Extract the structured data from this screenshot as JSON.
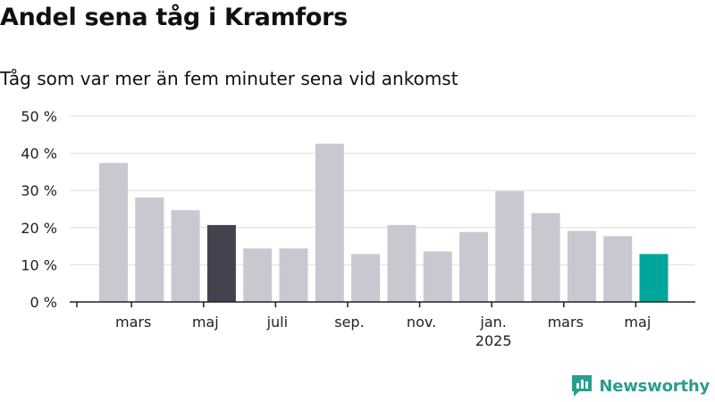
{
  "title": "Andel sena tåg i Kramfors",
  "subtitle": "Tåg som var mer än fem minuter sena vid ankomst",
  "brand": {
    "name": "Newsworthy",
    "color": "#2a9d8f",
    "icon": "newsworthy-logo-icon"
  },
  "chart_data": {
    "type": "bar",
    "title": "Andel sena tåg i Kramfors",
    "subtitle": "Tåg som var mer än fem minuter sena vid ankomst",
    "xlabel": "",
    "ylabel": "",
    "ylim": [
      0,
      50
    ],
    "yticks": [
      "0 %",
      "10 %",
      "20 %",
      "30 %",
      "40 %",
      "50 %"
    ],
    "grid": true,
    "legend": "none",
    "values": [
      37.4,
      28.1,
      24.7,
      20.7,
      14.4,
      14.4,
      42.6,
      12.9,
      20.7,
      13.6,
      18.8,
      29.8,
      23.9,
      19.1,
      17.7,
      12.9
    ],
    "highlight": {
      "index_dark": 3,
      "index_accent": 15
    },
    "xticks": [
      {
        "after_bar": 1,
        "label": "mars"
      },
      {
        "after_bar": 3,
        "label": "maj"
      },
      {
        "after_bar": 5,
        "label": "juli"
      },
      {
        "after_bar": 7,
        "label": "sep."
      },
      {
        "after_bar": 9,
        "label": "nov."
      },
      {
        "after_bar": 11,
        "label": "jan.",
        "sublabel": "2025"
      },
      {
        "after_bar": 13,
        "label": "mars"
      },
      {
        "after_bar": 15,
        "label": "maj"
      }
    ],
    "colors": {
      "bar": "#c9c8d1",
      "dark": "#43424f",
      "accent": "#00a69c",
      "grid": "#dddddd",
      "axis": "#222222"
    }
  }
}
